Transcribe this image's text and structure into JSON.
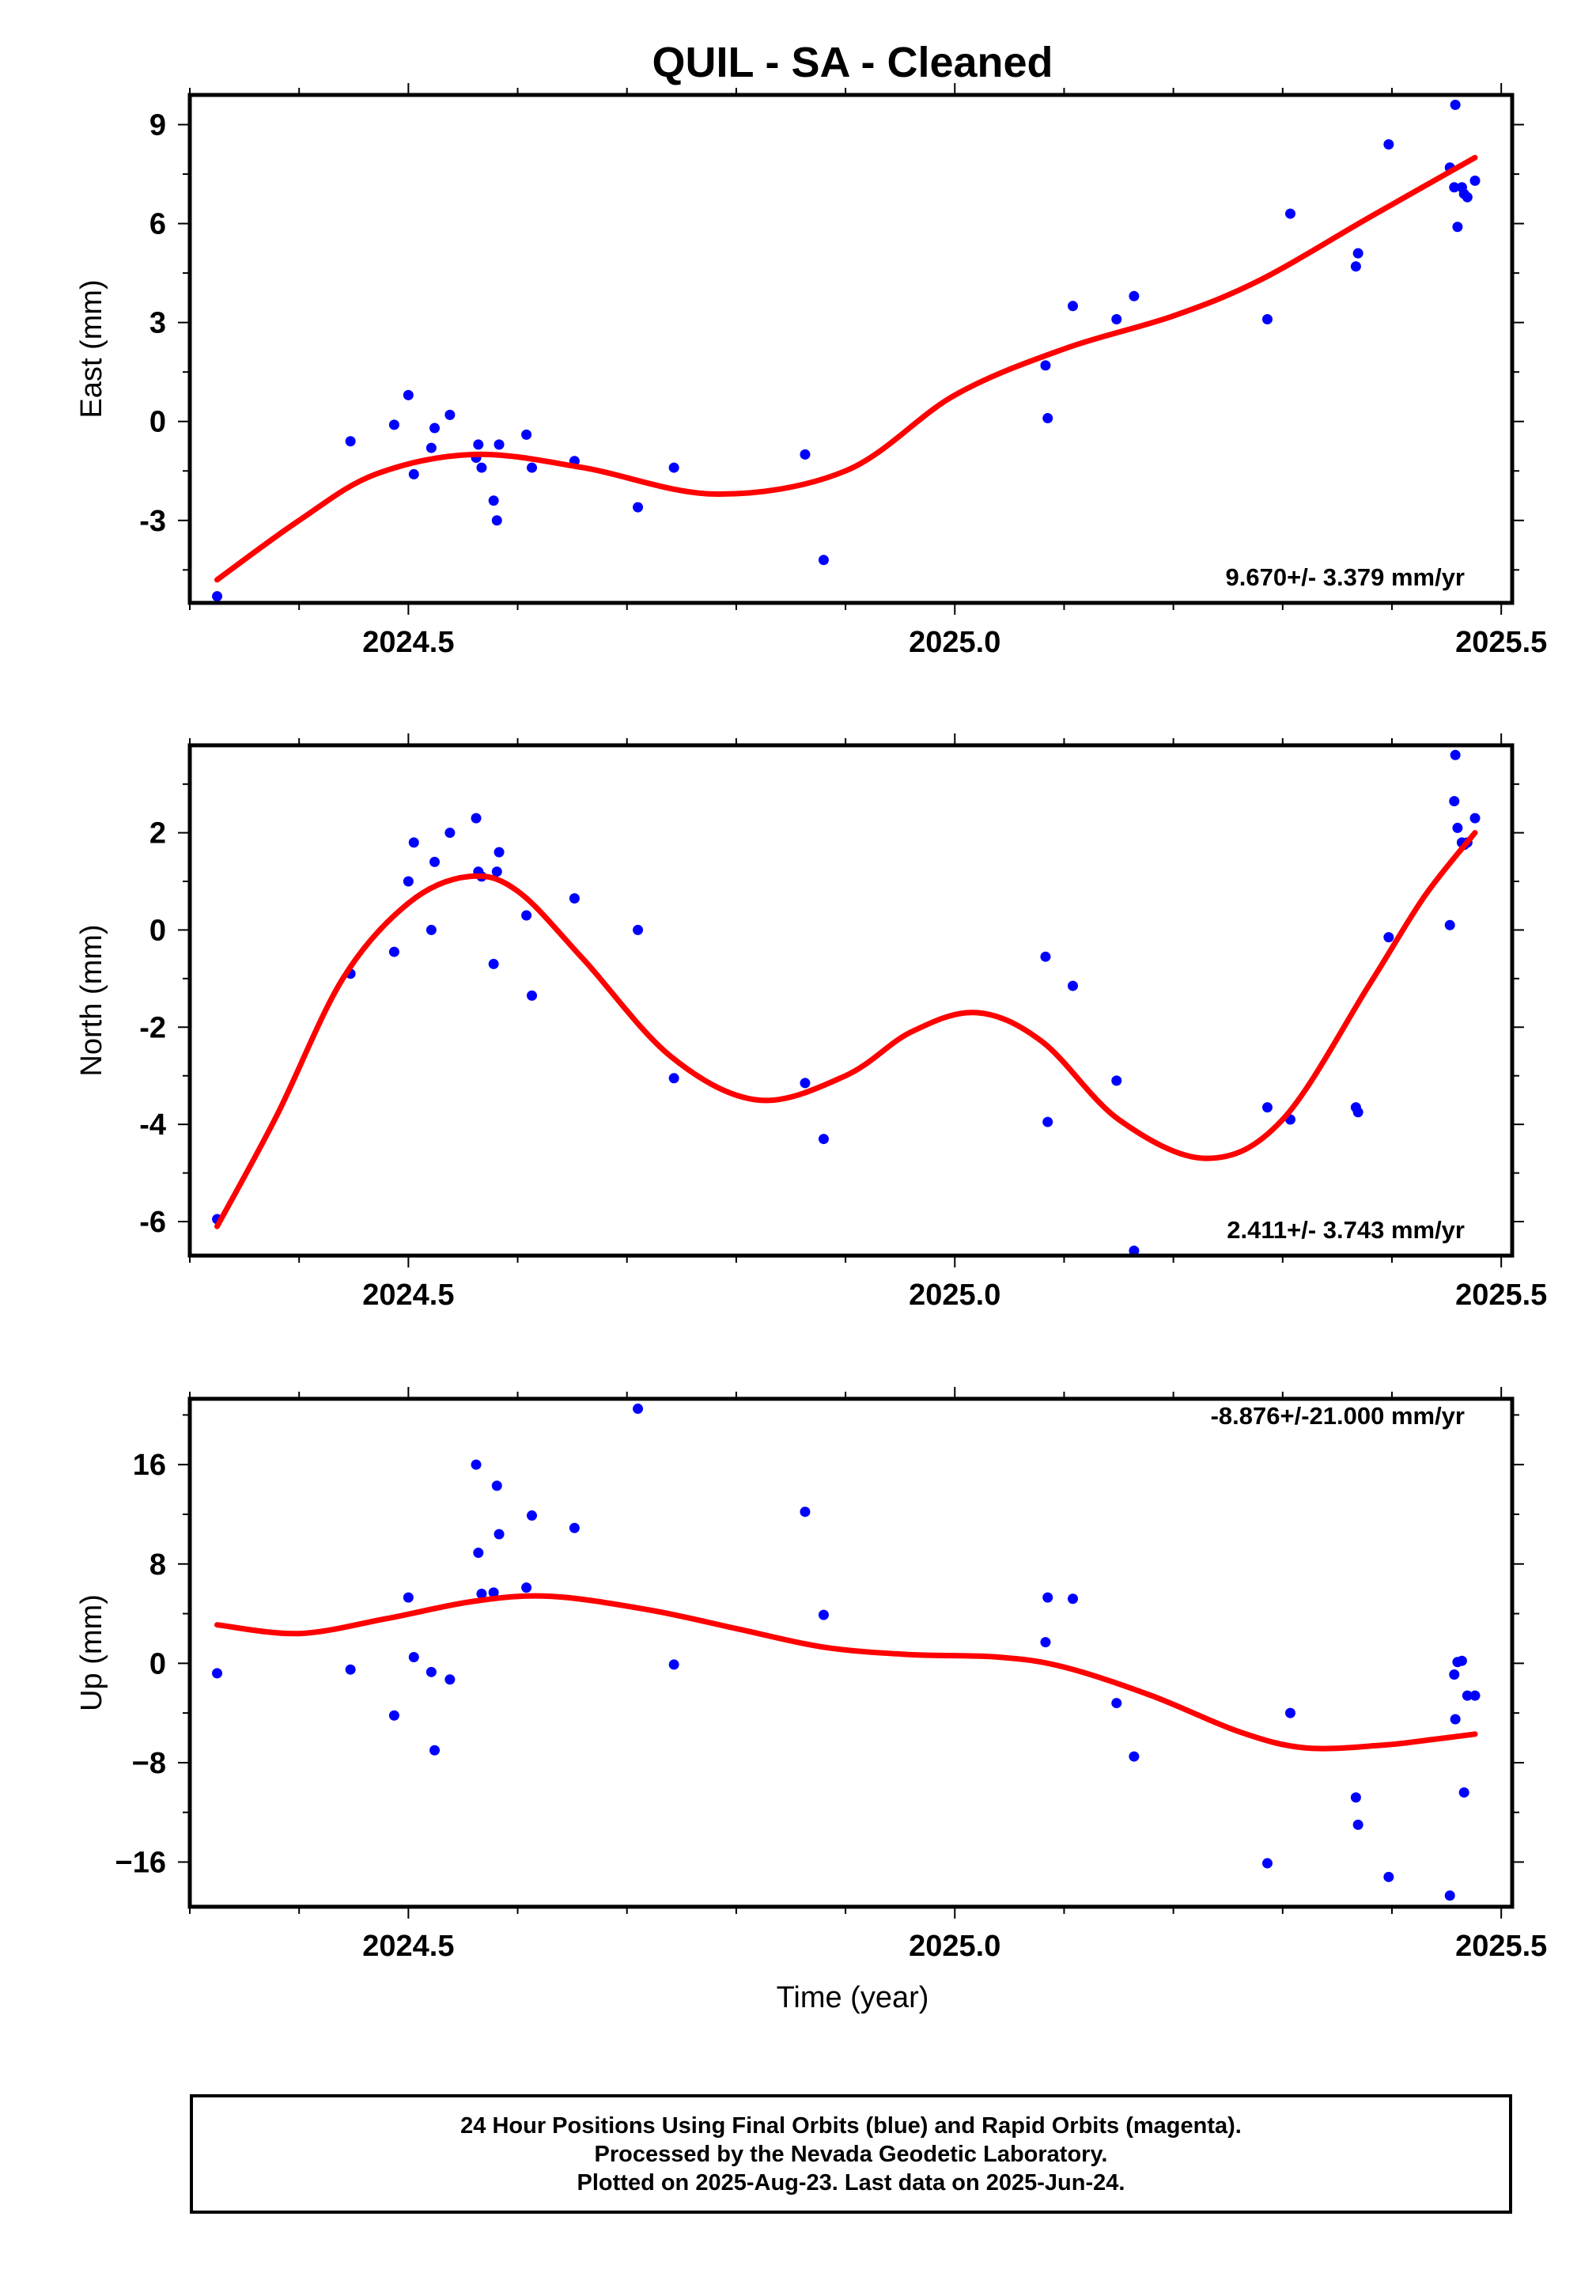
{
  "title": "QUIL  - SA - Cleaned",
  "xlabel": "Time (year)",
  "colors": {
    "final_orbits": "#0000ff",
    "model_curve": "#ff0000",
    "frame": "#000000"
  },
  "footer": {
    "line1": "24 Hour Positions Using Final Orbits (blue) and Rapid Orbits (magenta).",
    "line2": "Processed by the Nevada Geodetic Laboratory.",
    "line3": "Plotted on 2025-Aug-23. Last data on 2025-Jun-24."
  },
  "chart_data": [
    {
      "type": "scatter",
      "panel": "east",
      "ylabel": "East (mm)",
      "rate_label": "9.670+/- 3.379 mm/yr",
      "xlim": [
        2024.3,
        2025.51
      ],
      "ylim": [
        -5.5,
        9.9
      ],
      "xticks": [
        2024.5,
        2025.0,
        2025.5
      ],
      "xtick_labels": [
        "2024.5",
        "2025.0",
        "2025.5"
      ],
      "yticks": [
        -3,
        0,
        3,
        6,
        9
      ],
      "ytick_labels": [
        "-3",
        "0",
        "3",
        "6",
        "9"
      ],
      "points": {
        "x": [
          2024.325,
          2024.447,
          2024.487,
          2024.5,
          2024.505,
          2024.521,
          2024.524,
          2024.538,
          2024.562,
          2024.564,
          2024.567,
          2024.578,
          2024.581,
          2024.583,
          2024.608,
          2024.613,
          2024.652,
          2024.71,
          2024.743,
          2024.863,
          2024.88,
          2025.083,
          2025.085,
          2025.108,
          2025.148,
          2025.164,
          2025.286,
          2025.307,
          2025.367,
          2025.369,
          2025.397,
          2025.453,
          2025.457,
          2025.458,
          2025.46,
          2025.464,
          2025.466,
          2025.469,
          2025.476
        ],
        "y": [
          -5.3,
          -0.6,
          -0.1,
          0.8,
          -1.6,
          -0.8,
          -0.2,
          0.2,
          -1.1,
          -0.7,
          -1.4,
          -2.4,
          -3.0,
          -0.7,
          -0.4,
          -1.4,
          -1.2,
          -2.6,
          -1.4,
          -1.0,
          -4.2,
          1.7,
          0.1,
          3.5,
          3.1,
          3.8,
          3.1,
          6.3,
          4.7,
          5.1,
          8.4,
          7.7,
          7.1,
          9.6,
          5.9,
          7.1,
          6.9,
          6.8,
          7.3
        ]
      },
      "model": {
        "x": [
          2024.325,
          2024.4,
          2024.47,
          2024.56,
          2024.66,
          2024.78,
          2024.9,
          2025.0,
          2025.1,
          2025.2,
          2025.28,
          2025.38,
          2025.476
        ],
        "y": [
          -4.8,
          -3.0,
          -1.6,
          -1.0,
          -1.4,
          -2.2,
          -1.5,
          0.8,
          2.2,
          3.2,
          4.3,
          6.2,
          8.0
        ]
      }
    },
    {
      "type": "scatter",
      "panel": "north",
      "ylabel": "North (mm)",
      "rate_label": "2.411+/- 3.743 mm/yr",
      "xlim": [
        2024.3,
        2025.51
      ],
      "ylim": [
        -6.7,
        3.8
      ],
      "xticks": [
        2024.5,
        2025.0,
        2025.5
      ],
      "xtick_labels": [
        "2024.5",
        "2025.0",
        "2025.5"
      ],
      "yticks": [
        -6,
        -4,
        -2,
        0,
        2
      ],
      "ytick_labels": [
        "-6",
        "-4",
        "-2",
        "0",
        "2"
      ],
      "points": {
        "x": [
          2024.325,
          2024.447,
          2024.487,
          2024.5,
          2024.505,
          2024.521,
          2024.524,
          2024.538,
          2024.562,
          2024.564,
          2024.567,
          2024.578,
          2024.581,
          2024.583,
          2024.608,
          2024.613,
          2024.652,
          2024.71,
          2024.743,
          2024.863,
          2024.88,
          2025.083,
          2025.085,
          2025.108,
          2025.148,
          2025.164,
          2025.286,
          2025.307,
          2025.367,
          2025.369,
          2025.397,
          2025.453,
          2025.457,
          2025.458,
          2025.46,
          2025.464,
          2025.466,
          2025.469,
          2025.476
        ],
        "y": [
          -5.95,
          -0.9,
          -0.45,
          1.0,
          1.8,
          0.0,
          1.4,
          2.0,
          2.3,
          1.2,
          1.1,
          -0.7,
          1.2,
          1.6,
          0.3,
          -1.35,
          0.65,
          0.0,
          -3.05,
          -3.15,
          -4.3,
          -0.55,
          -3.95,
          -1.15,
          -3.1,
          -6.6,
          -3.65,
          -3.9,
          -3.65,
          -3.75,
          -0.15,
          0.1,
          2.65,
          3.6,
          2.1,
          1.8,
          1.75,
          1.8,
          2.3
        ]
      },
      "model": {
        "x": [
          2024.325,
          2024.38,
          2024.44,
          2024.5,
          2024.555,
          2024.6,
          2024.66,
          2024.74,
          2024.82,
          2024.9,
          2024.96,
          2025.02,
          2025.08,
          2025.15,
          2025.23,
          2025.3,
          2025.38,
          2025.43,
          2025.476
        ],
        "y": [
          -6.1,
          -3.8,
          -1.0,
          0.55,
          1.1,
          0.8,
          -0.6,
          -2.6,
          -3.5,
          -3.0,
          -2.1,
          -1.7,
          -2.3,
          -3.9,
          -4.7,
          -3.9,
          -1.1,
          0.7,
          2.0
        ]
      }
    },
    {
      "type": "scatter",
      "panel": "up",
      "ylabel": "Up (mm)",
      "rate_label": "-8.876+/-21.000 mm/yr",
      "xlim": [
        2024.3,
        2025.51
      ],
      "ylim": [
        -19.6,
        21.3
      ],
      "xticks": [
        2024.5,
        2025.0,
        2025.5
      ],
      "xtick_labels": [
        "2024.5",
        "2025.0",
        "2025.5"
      ],
      "yticks": [
        -16,
        -8,
        0,
        8,
        16
      ],
      "ytick_labels": [
        "−16",
        "−8",
        "0",
        "8",
        "16"
      ],
      "points": {
        "x": [
          2024.325,
          2024.447,
          2024.487,
          2024.5,
          2024.505,
          2024.521,
          2024.524,
          2024.538,
          2024.562,
          2024.564,
          2024.567,
          2024.578,
          2024.581,
          2024.583,
          2024.608,
          2024.613,
          2024.652,
          2024.71,
          2024.743,
          2024.863,
          2024.88,
          2025.083,
          2025.085,
          2025.108,
          2025.148,
          2025.164,
          2025.286,
          2025.307,
          2025.367,
          2025.369,
          2025.397,
          2025.453,
          2025.457,
          2025.458,
          2025.46,
          2025.464,
          2025.466,
          2025.469,
          2025.476
        ],
        "y": [
          -0.8,
          -0.5,
          -4.2,
          5.3,
          0.5,
          -0.7,
          -7.0,
          -1.3,
          16.0,
          8.9,
          5.6,
          5.7,
          14.3,
          10.4,
          6.1,
          11.9,
          10.9,
          20.5,
          -0.1,
          12.2,
          3.9,
          1.7,
          5.3,
          5.2,
          -3.2,
          -7.5,
          -16.1,
          -4.0,
          -10.8,
          -13.0,
          -17.2,
          -18.7,
          -0.9,
          -4.5,
          0.1,
          0.2,
          -10.4,
          -2.6,
          -2.6
        ]
      },
      "model": {
        "x": [
          2024.325,
          2024.4,
          2024.48,
          2024.56,
          2024.63,
          2024.72,
          2024.8,
          2024.88,
          2024.96,
          2025.04,
          2025.1,
          2025.18,
          2025.26,
          2025.32,
          2025.39,
          2025.44,
          2025.476
        ],
        "y": [
          3.1,
          2.4,
          3.6,
          5.0,
          5.4,
          4.3,
          2.8,
          1.3,
          0.7,
          0.5,
          -0.3,
          -2.6,
          -5.5,
          -6.8,
          -6.6,
          -6.1,
          -5.7
        ]
      }
    }
  ]
}
